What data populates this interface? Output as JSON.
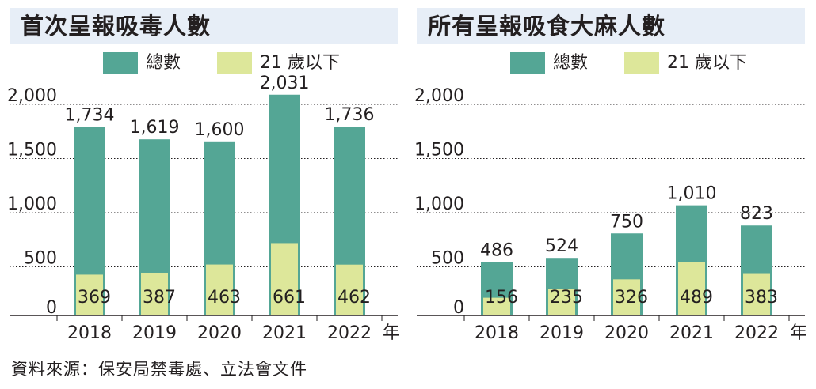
{
  "colors": {
    "total": "#54a695",
    "under21": "#dde79a",
    "title_band": "#e7eef7",
    "text": "#231f20"
  },
  "legend": {
    "total_label": "總數",
    "under21_label": "21 歲以下"
  },
  "source": "資料來源：保安局禁毒處、立法會文件",
  "chart_data": [
    {
      "type": "bar",
      "title": "首次呈報吸毒人數",
      "categories": [
        "2018",
        "2019",
        "2020",
        "2021",
        "2022"
      ],
      "x_unit": "年",
      "yticks": [
        "0",
        "500",
        "1,000",
        "1,500",
        "2,000"
      ],
      "ylim": [
        0,
        2000
      ],
      "grid": true,
      "series": [
        {
          "name": "總數",
          "values": [
            1734,
            1619,
            1600,
            2031,
            1736
          ],
          "labels": [
            "1,734",
            "1,619",
            "1,600",
            "2,031",
            "1,736"
          ]
        },
        {
          "name": "21 歲以下",
          "values": [
            369,
            387,
            463,
            661,
            462
          ],
          "labels": [
            "369",
            "387",
            "463",
            "661",
            "462"
          ]
        }
      ]
    },
    {
      "type": "bar",
      "title": "所有呈報吸食大麻人數",
      "categories": [
        "2018",
        "2019",
        "2020",
        "2021",
        "2022"
      ],
      "x_unit": "年",
      "yticks": [
        "0",
        "500",
        "1,000",
        "1,500",
        "2,000"
      ],
      "ylim": [
        0,
        2000
      ],
      "grid": true,
      "series": [
        {
          "name": "總數",
          "values": [
            486,
            524,
            750,
            1010,
            823
          ],
          "labels": [
            "486",
            "524",
            "750",
            "1,010",
            "823"
          ]
        },
        {
          "name": "21 歲以下",
          "values": [
            156,
            235,
            326,
            489,
            383
          ],
          "labels": [
            "156",
            "235",
            "326",
            "489",
            "383"
          ]
        }
      ]
    }
  ]
}
